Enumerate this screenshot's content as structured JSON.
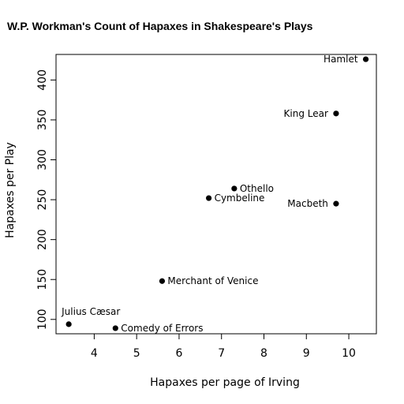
{
  "chart_data": {
    "type": "scatter",
    "title": "W.P. Workman's Count of Hapaxes in Shakespeare's Plays",
    "xlabel": "Hapaxes per page of Irving",
    "ylabel": "Hapaxes per Play",
    "xlim": [
      3.1,
      10.65
    ],
    "ylim": [
      82,
      432
    ],
    "xticks": [
      4,
      5,
      6,
      7,
      8,
      9,
      10
    ],
    "yticks": [
      100,
      150,
      200,
      250,
      300,
      350,
      400
    ],
    "grid": false,
    "points": [
      {
        "label": "Hamlet",
        "x": 10.4,
        "y": 426,
        "label_pos": "left"
      },
      {
        "label": "King Lear",
        "x": 9.7,
        "y": 358,
        "label_pos": "left"
      },
      {
        "label": "Othello",
        "x": 7.3,
        "y": 264,
        "label_pos": "right"
      },
      {
        "label": "Cymbeline",
        "x": 6.7,
        "y": 252,
        "label_pos": "right"
      },
      {
        "label": "Macbeth",
        "x": 9.7,
        "y": 245,
        "label_pos": "left"
      },
      {
        "label": "Merchant of Venice",
        "x": 5.6,
        "y": 148,
        "label_pos": "right"
      },
      {
        "label": "Julius Cæsar",
        "x": 3.4,
        "y": 94,
        "label_pos": "above"
      },
      {
        "label": "Comedy of Errors",
        "x": 4.5,
        "y": 89,
        "label_pos": "right"
      }
    ]
  }
}
